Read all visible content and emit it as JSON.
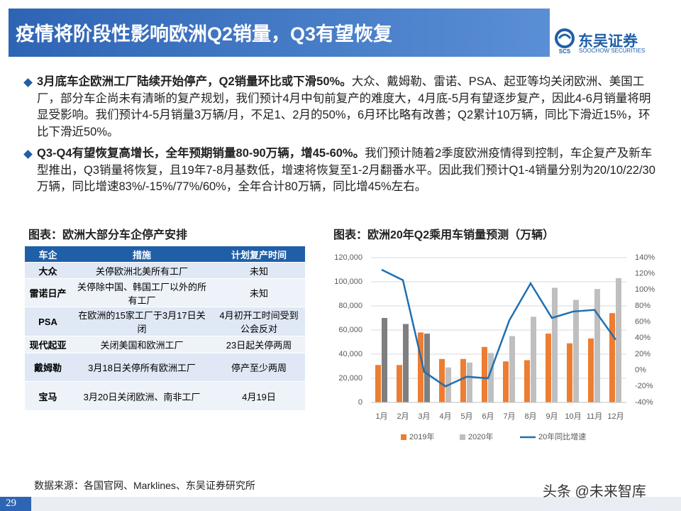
{
  "header": {
    "title": "疫情将阶段性影响欧洲Q2销量，Q3有望恢复",
    "logo_name": "东吴证券",
    "logo_en": "SOOCHOW SECURITIES",
    "logo_abbr": "SCS"
  },
  "bullets": [
    {
      "bold": "3月底车企欧洲工厂陆续开始停产，Q2销量环比或下滑50%。",
      "text": "大众、戴姆勒、雷诺、PSA、起亚等均关闭欧洲、美国工厂，部分车企尚未有清晰的复产规划，我们预计4月中旬前复产的难度大，4月底-5月有望逐步复产，因此4-6月销量将明显受影响。我们预计4-5月销量3万辆/月，不足1、2月的50%，6月环比略有改善；Q2累计10万辆，同比下滑近15%，环比下滑近50%。"
    },
    {
      "bold": "Q3-Q4有望恢复高增长，全年预期销量80-90万辆，增45-60%。",
      "text": "我们预计随着2季度欧洲疫情得到控制，车企复产及新车型推出，Q3销量将恢复，且19年7-8月基数低，增速将恢复至1-2月翻番水平。因此我们预计Q1-4销量分别为20/10/22/30万辆，同比增速83%/-15%/77%/60%，全年合计80万辆，同比增45%左右。"
    }
  ],
  "table": {
    "title": "图表：欧洲大部分车企停产安排",
    "header": [
      "车企",
      "措施",
      "计划复产时间"
    ],
    "rows": [
      [
        "大众",
        "关停欧洲北美所有工厂",
        "未知"
      ],
      [
        "雷诺日产",
        "关停除中国、韩国工厂以外的所有工厂",
        "未知"
      ],
      [
        "PSA",
        "在欧洲的15家工厂于3月17日关闭",
        "4月初开工时间受到公会反对"
      ],
      [
        "现代起亚",
        "关闭美国和欧洲工厂",
        "23日起关停两周"
      ],
      [
        "戴姆勒",
        "3月18日关停所有欧洲工厂",
        "停产至少两周"
      ],
      [
        "宝马",
        "3月20日关闭欧洲、南非工厂",
        "4月19日"
      ]
    ]
  },
  "chart_data": {
    "type": "bar",
    "title": "图表：欧洲20年Q2乘用车销量预测（万辆）",
    "categories": [
      "1月",
      "2月",
      "3月",
      "4月",
      "5月",
      "6月",
      "7月",
      "8月",
      "9月",
      "10月",
      "11月",
      "12月"
    ],
    "series": [
      {
        "name": "2019年",
        "color": "#ed7d31",
        "values": [
          31000,
          31000,
          58000,
          36000,
          36000,
          46000,
          34000,
          35000,
          57000,
          49000,
          53000,
          74000
        ]
      },
      {
        "name": "2020年",
        "color": "#bfbfbf",
        "colors": [
          "#7f7f7f",
          "#7f7f7f",
          "#7f7f7f",
          "#bfbfbf",
          "#bfbfbf",
          "#bfbfbf",
          "#bfbfbf",
          "#bfbfbf",
          "#bfbfbf",
          "#bfbfbf",
          "#bfbfbf",
          "#bfbfbf"
        ],
        "values": [
          70000,
          65000,
          57000,
          29000,
          33000,
          41000,
          55000,
          71000,
          95000,
          85000,
          94000,
          103000
        ]
      },
      {
        "name": "20年同比增速",
        "type": "line",
        "axis": "y2",
        "color": "#1f6fb2",
        "values": [
          125,
          112,
          -2,
          -20,
          -8,
          -10,
          62,
          108,
          65,
          73,
          75,
          38
        ]
      }
    ],
    "ylim": [
      0,
      120000
    ],
    "yticks": [
      0,
      {
        "value": 20000,
        "label": "20,000"
      },
      {
        "value": 40000,
        "label": "40,000"
      },
      {
        "value": 60000,
        "label": "60,000"
      },
      {
        "value": 80000,
        "label": "80,000"
      },
      {
        "value": 100000,
        "label": "100,000"
      },
      {
        "value": 120000,
        "label": "120,000"
      }
    ],
    "y2lim": [
      -40,
      140
    ],
    "y2ticks": [
      {
        "value": -40,
        "label": "-40%"
      },
      {
        "value": -20,
        "label": "-20%"
      },
      {
        "value": 0,
        "label": "0%"
      },
      {
        "value": 20,
        "label": "20%"
      },
      {
        "value": 40,
        "label": "40%"
      },
      {
        "value": 60,
        "label": "60%"
      },
      {
        "value": 80,
        "label": "80%"
      },
      {
        "value": 100,
        "label": "100%"
      },
      {
        "value": 120,
        "label": "120%"
      },
      {
        "value": 140,
        "label": "140%"
      }
    ],
    "grid": true,
    "legend": "bottom"
  },
  "source": "数据来源：各国官网、Marklines、东吴证券研究所",
  "page_number": "29",
  "watermark": "头条 @未来智库"
}
